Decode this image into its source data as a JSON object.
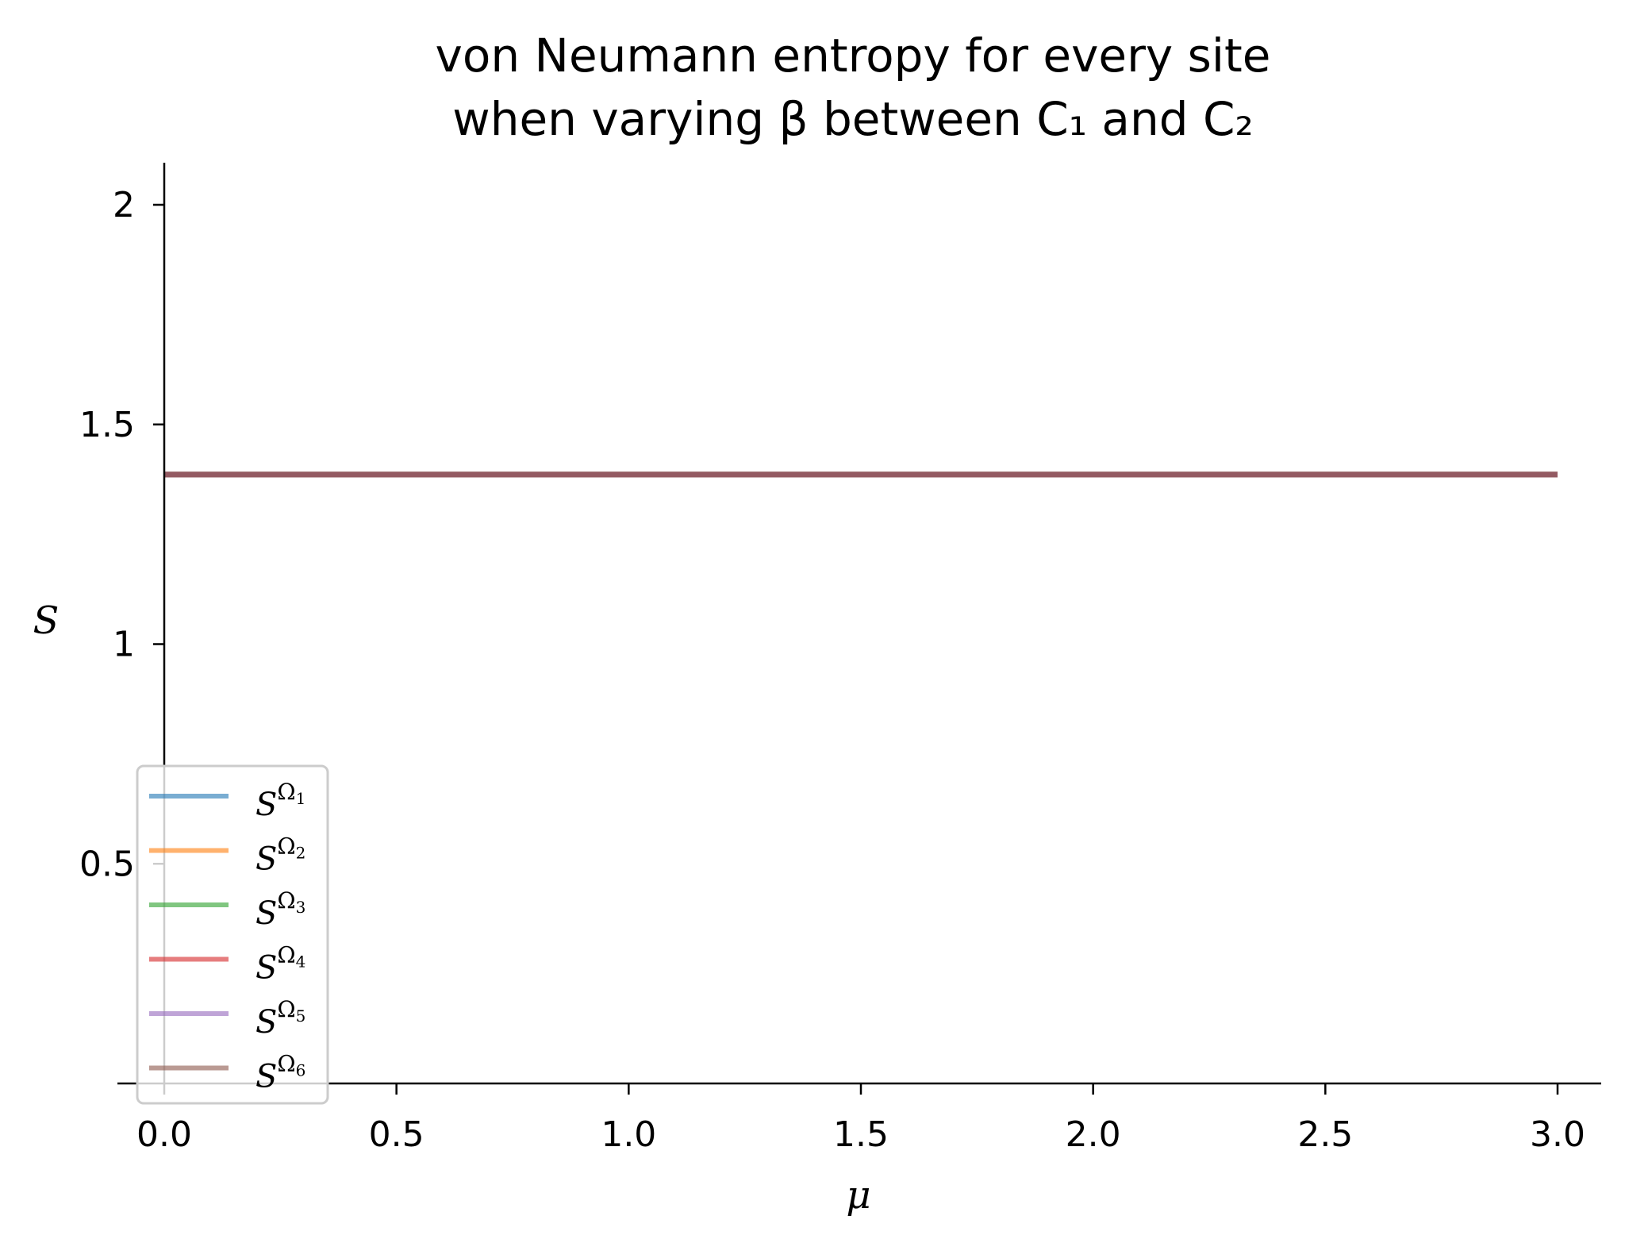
{
  "chart_data": {
    "type": "line",
    "title": [
      "von Neumann entropy for every site",
      "when varying β between C₁ and C₂"
    ],
    "xlabel": "μ",
    "ylabel": "S",
    "xlim": [
      -0.1,
      3.1
    ],
    "ylim": [
      0.0,
      2.1
    ],
    "xticks": [
      0.0,
      0.5,
      1.0,
      1.5,
      2.0,
      2.5,
      3.0
    ],
    "xtick_labels": [
      "0.0",
      "0.5",
      "1.0",
      "1.5",
      "2.0",
      "2.5",
      "3.0"
    ],
    "yticks": [
      0.5,
      1.0,
      1.5,
      2.0
    ],
    "ytick_labels": [
      "0.5",
      "1",
      "1.5",
      "2"
    ],
    "grid": false,
    "legend_position": "lower-left",
    "series": [
      {
        "name": "S^{Ω₁}",
        "label_main": "S",
        "label_sup": "Ω",
        "label_sub": "1",
        "color": "#1f77b4",
        "x": [
          0.0,
          3.0
        ],
        "y": [
          1.386,
          1.386
        ]
      },
      {
        "name": "S^{Ω₂}",
        "label_main": "S",
        "label_sup": "Ω",
        "label_sub": "2",
        "color": "#ff7f0e",
        "x": [
          0.0,
          3.0
        ],
        "y": [
          1.386,
          1.386
        ]
      },
      {
        "name": "S^{Ω₃}",
        "label_main": "S",
        "label_sup": "Ω",
        "label_sub": "3",
        "color": "#2ca02c",
        "x": [
          0.0,
          3.0
        ],
        "y": [
          1.386,
          1.386
        ]
      },
      {
        "name": "S^{Ω₄}",
        "label_main": "S",
        "label_sup": "Ω",
        "label_sub": "4",
        "color": "#d62728",
        "x": [
          0.0,
          3.0
        ],
        "y": [
          1.386,
          1.386
        ]
      },
      {
        "name": "S^{Ω₅}",
        "label_main": "S",
        "label_sup": "Ω",
        "label_sub": "5",
        "color": "#9467bd",
        "x": [
          0.0,
          3.0
        ],
        "y": [
          1.386,
          1.386
        ]
      },
      {
        "name": "S^{Ω₆}",
        "label_main": "S",
        "label_sup": "Ω",
        "label_sub": "6",
        "color": "#8c564b",
        "x": [
          0.0,
          3.0
        ],
        "y": [
          1.386,
          1.386
        ]
      }
    ]
  }
}
